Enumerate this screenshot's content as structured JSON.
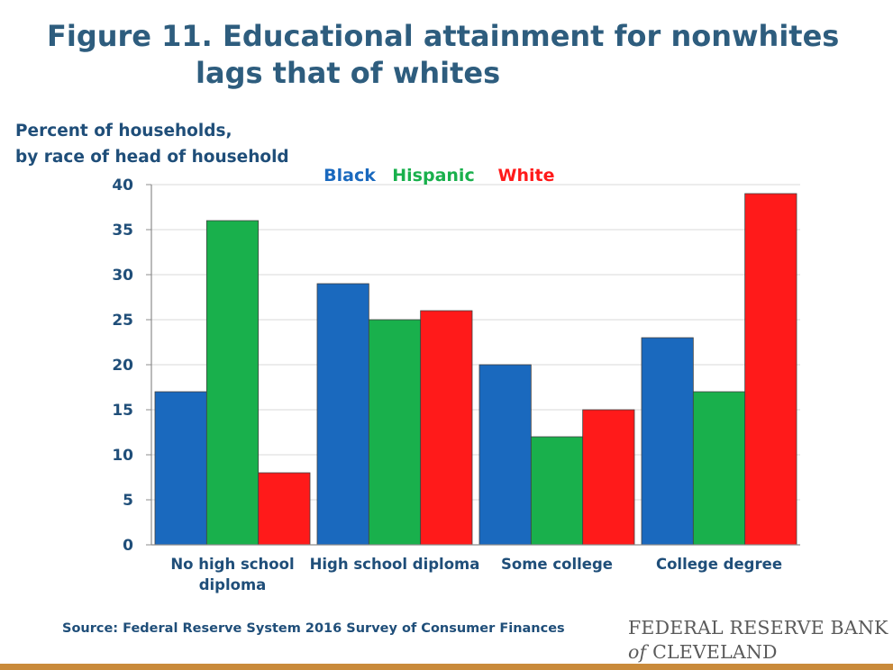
{
  "title": {
    "line1": "Figure 11. Educational attainment for nonwhites",
    "line2": "lags that of whites"
  },
  "ylabel": {
    "line1": "Percent of households,",
    "line2": "by race of head of household"
  },
  "chart_data": {
    "type": "bar",
    "categories": [
      [
        "No high school",
        "diploma"
      ],
      [
        "High school diploma"
      ],
      [
        "Some college"
      ],
      [
        "College degree"
      ]
    ],
    "series": [
      {
        "name": "Black",
        "color": "#1a69be",
        "values": [
          17,
          29,
          20,
          23
        ]
      },
      {
        "name": "Hispanic",
        "color": "#19b04c",
        "values": [
          36,
          25,
          12,
          17
        ]
      },
      {
        "name": "White",
        "color": "#ff1a1a",
        "values": [
          8,
          26,
          15,
          39
        ]
      }
    ],
    "ylim": [
      0,
      40
    ],
    "yticks": [
      0,
      5,
      10,
      15,
      20,
      25,
      30,
      35,
      40
    ],
    "grid": true,
    "legend_position": "top"
  },
  "source": "Source: Federal Reserve System 2016 Survey of Consumer Finances",
  "brand": {
    "line1": "FEDERAL RESERVE BANK",
    "of": "of",
    "line2": "CLEVELAND"
  },
  "colors": {
    "title": "#2e5d7e",
    "text": "#1f4e79",
    "bottom_bar": "#c98a3a"
  }
}
